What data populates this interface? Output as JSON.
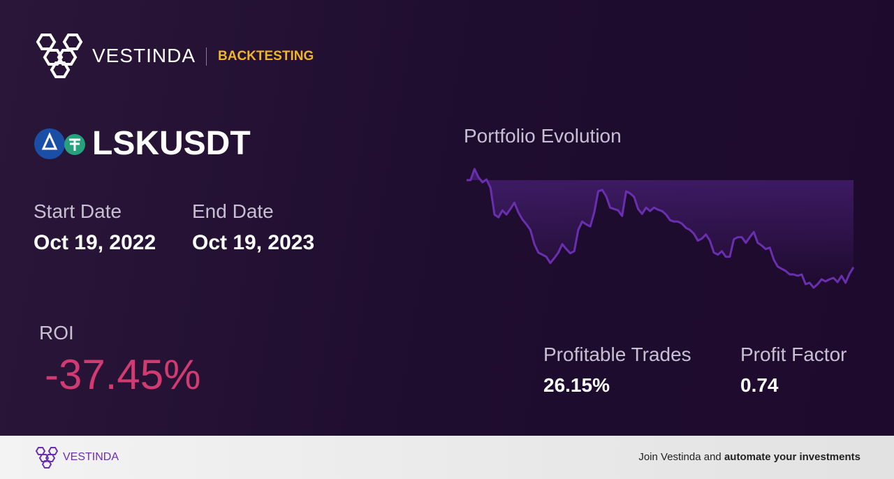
{
  "header": {
    "brand": "VESTINDA",
    "section": "BACKTESTING"
  },
  "pair": "LSKUSDT",
  "dates": {
    "start_label": "Start Date",
    "start": "Oct 19, 2022",
    "end_label": "End Date",
    "end": "Oct 19, 2023"
  },
  "roi": {
    "label": "ROI",
    "value": "-37.45%"
  },
  "stats": [
    {
      "label": "Profitable Trades",
      "value": "26.15%"
    },
    {
      "label": "Profit Factor",
      "value": "0.74"
    }
  ],
  "chart_data": {
    "type": "line",
    "title": "Portfolio Evolution",
    "color": "#6a2fb0",
    "values": [
      100,
      100,
      104.8,
      101.2,
      99.1,
      100.3,
      96.7,
      85.2,
      84.0,
      87.0,
      85.2,
      87.6,
      90.3,
      86.1,
      83.1,
      81.0,
      78.6,
      72.5,
      68.9,
      68.0,
      67.1,
      64.4,
      66.5,
      68.9,
      72.5,
      70.4,
      68.6,
      69.5,
      78.6,
      82.2,
      81.0,
      80.1,
      86.1,
      95.2,
      95.8,
      93.1,
      88.2,
      87.6,
      87.0,
      84.6,
      95.2,
      94.3,
      92.8,
      87.6,
      85.5,
      88.2,
      86.7,
      88.2,
      87.3,
      86.7,
      85.2,
      82.8,
      82.2,
      82.2,
      81.3,
      79.5,
      78.6,
      77.0,
      74.0,
      74.9,
      76.7,
      74.0,
      68.9,
      68.0,
      69.5,
      67.1,
      67.1,
      74.6,
      75.5,
      75.5,
      73.1,
      75.5,
      77.7,
      73.1,
      71.9,
      70.4,
      71.0,
      65.9,
      62.9,
      61.9,
      61.0,
      59.5,
      59.5,
      58.9,
      59.5,
      55.3,
      55.9,
      53.8,
      55.3,
      57.4,
      56.5,
      57.4,
      58.0,
      56.2,
      58.9,
      55.9,
      59.8,
      62.55
    ]
  },
  "footer": {
    "brand": "VESTINDA",
    "cta_prefix": "Join Vestinda and",
    "cta_bold": "automate your investments"
  }
}
